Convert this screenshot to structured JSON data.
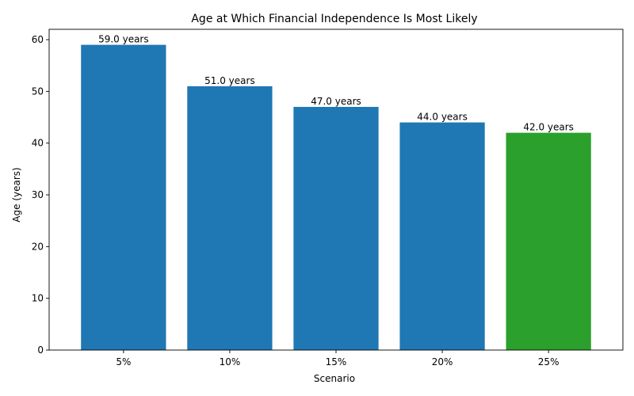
{
  "chart_data": {
    "type": "bar",
    "title": "Age at Which Financial Independence Is Most Likely",
    "xlabel": "Scenario",
    "ylabel": "Age (years)",
    "categories": [
      "5%",
      "10%",
      "15%",
      "20%",
      "25%"
    ],
    "values": [
      59,
      51,
      47,
      44,
      42
    ],
    "data_labels": [
      "59.0 years",
      "51.0 years",
      "47.0 years",
      "44.0 years",
      "42.0 years"
    ],
    "ylim": [
      0,
      62
    ],
    "yticks": [
      0,
      10,
      20,
      30,
      40,
      50,
      60
    ],
    "ytick_labels": [
      "0",
      "10",
      "20",
      "30",
      "40",
      "50",
      "60"
    ],
    "colors": [
      "#1f77b4",
      "#1f77b4",
      "#1f77b4",
      "#1f77b4",
      "#2ca02c"
    ],
    "grid": false,
    "legend": "none"
  }
}
